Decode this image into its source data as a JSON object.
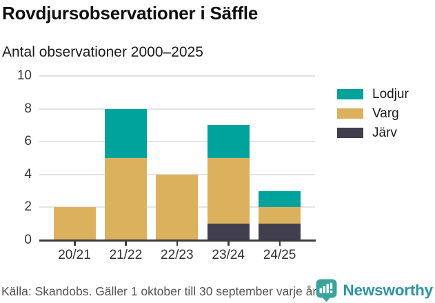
{
  "header": {
    "title": "Rovdjursobservationer i Säffle",
    "subtitle": "Antal observationer 2000–2025"
  },
  "chart_data": {
    "type": "bar",
    "stacked": true,
    "title": "Rovdjursobservationer i Säffle",
    "subtitle": "Antal observationer 2000–2025",
    "categories": [
      "20/21",
      "21/22",
      "22/23",
      "23/24",
      "24/25"
    ],
    "series": [
      {
        "name": "Järv",
        "color": "#413f4e",
        "values": [
          0,
          0,
          0,
          1,
          1
        ]
      },
      {
        "name": "Varg",
        "color": "#dcb15e",
        "values": [
          2,
          5,
          4,
          4,
          1
        ]
      },
      {
        "name": "Lodjur",
        "color": "#00a39c",
        "values": [
          0,
          3,
          0,
          2,
          1
        ]
      }
    ],
    "stack_order_note": "series listed bottom-to-top",
    "totals": [
      2,
      8,
      4,
      7,
      3
    ],
    "legend": [
      "Lodjur",
      "Varg",
      "Järv"
    ],
    "legend_position": "right",
    "xlabel": "",
    "ylabel": "",
    "ylim": [
      0,
      10
    ],
    "yticks": [
      0,
      2,
      4,
      6,
      8,
      10
    ],
    "grid": true
  },
  "footer": {
    "source": "Källa: Skandobs. Gäller 1 oktober till 30 september varje år.",
    "brand": "Newsworthy",
    "brand_icon": "newsworthy-bar-chart-bubble-icon"
  },
  "colors": {
    "lodjur": "#00a39c",
    "varg": "#dcb15e",
    "jarv": "#413f4e",
    "gridline": "#e3e3e3",
    "axis": "#3b3b3b",
    "tick_text": "#333333",
    "title_text": "#0f0f0f",
    "source_text": "#545454",
    "brand_teal": "#2d94a2",
    "brand_icon_teal": "#3aa49c"
  }
}
